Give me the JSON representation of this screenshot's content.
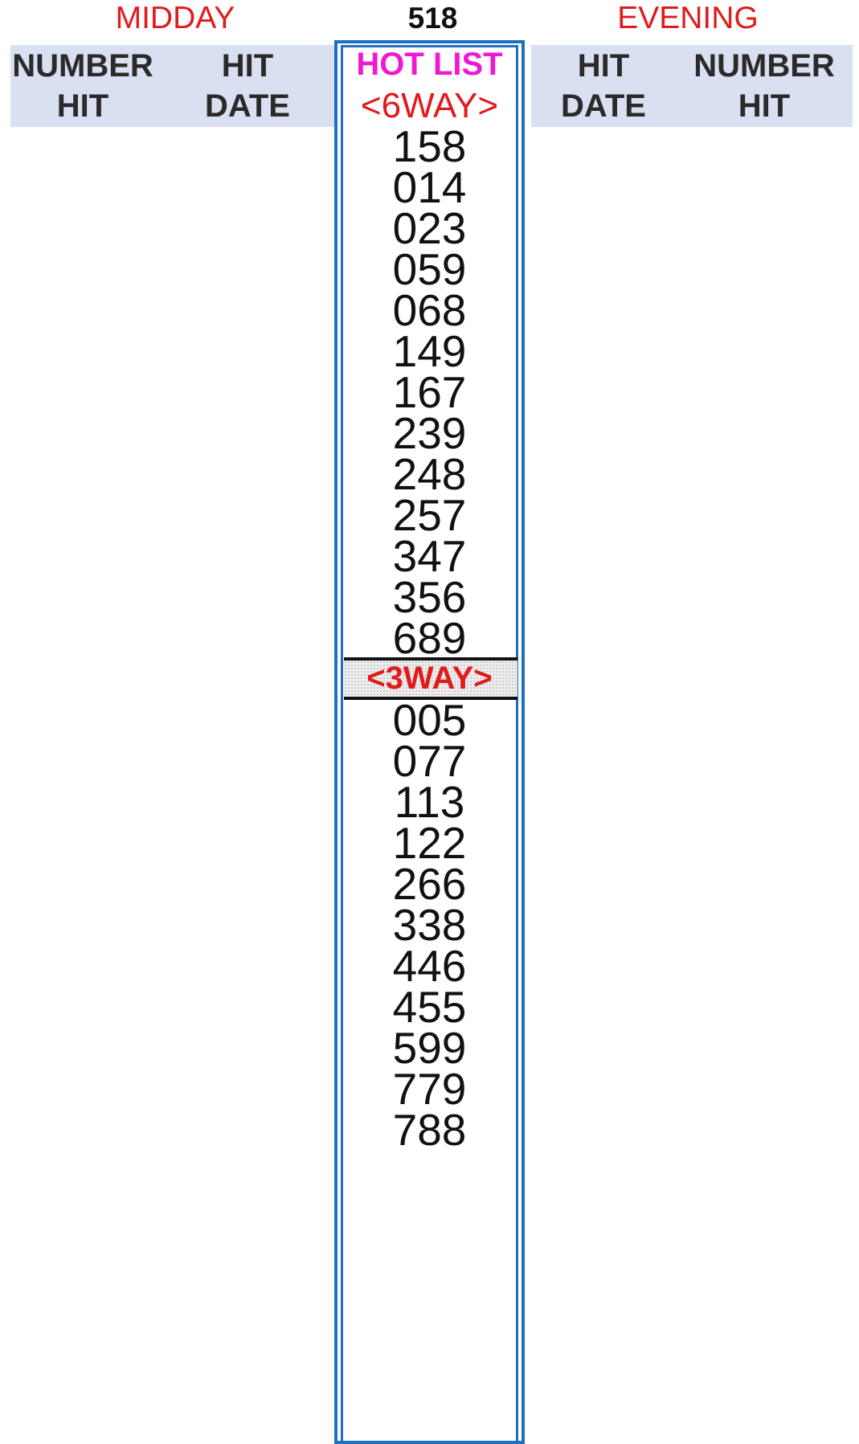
{
  "top": {
    "midday_label": "MIDDAY",
    "center_number": "518",
    "evening_label": "EVENING"
  },
  "header": {
    "left": {
      "number_hit": [
        "NUMBER",
        "HIT"
      ],
      "hit_date": [
        "HIT",
        "DATE"
      ]
    },
    "right": {
      "hit_date": [
        "HIT",
        "DATE"
      ],
      "number_hit": [
        "NUMBER",
        "HIT"
      ]
    }
  },
  "hot_list": {
    "title": "HOT LIST",
    "six_way_label": "<6WAY>",
    "six_way_numbers": [
      "158",
      "014",
      "023",
      "059",
      "068",
      "149",
      "167",
      "239",
      "248",
      "257",
      "347",
      "356",
      "689"
    ],
    "three_way_label": "<3WAY>",
    "three_way_numbers": [
      "005",
      "077",
      "113",
      "122",
      "266",
      "338",
      "446",
      "455",
      "599",
      "779",
      "788"
    ]
  },
  "colors": {
    "accent_red": "#e01b1b",
    "hot_list_magenta": "#ee1ad2",
    "column_border_blue": "#1e6fc0",
    "header_band": "#d9e0f1"
  }
}
